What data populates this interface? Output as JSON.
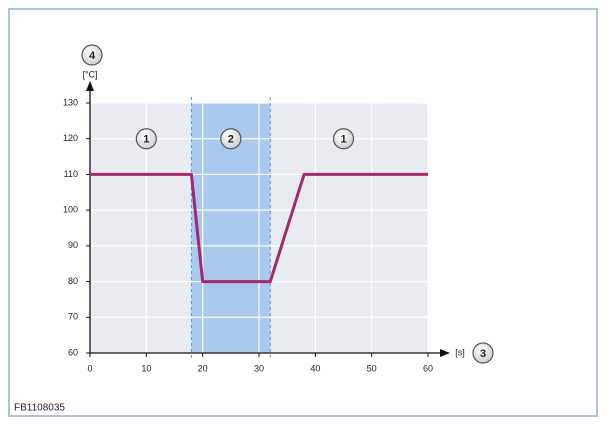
{
  "chart_data": {
    "type": "line",
    "x": [
      0,
      18,
      20,
      32,
      38,
      60
    ],
    "series": [
      {
        "values": [
          110,
          110,
          80,
          80,
          110,
          110
        ],
        "color": "#a32a6c"
      }
    ],
    "xlim": [
      0,
      60
    ],
    "ylim": [
      60,
      130
    ],
    "xticks": [
      0,
      10,
      20,
      30,
      40,
      50,
      60
    ],
    "yticks": [
      60,
      70,
      80,
      90,
      100,
      110,
      120,
      130
    ],
    "grid": true,
    "band": [
      18,
      32
    ],
    "band_color": "#a9c9ef",
    "y_label": "[°C]",
    "x_label": "[s]",
    "y_callout": "4",
    "x_callout": "3",
    "annotations": [
      {
        "label": "1",
        "x": 10,
        "y": 120
      },
      {
        "label": "2",
        "x": 25,
        "y": 120
      },
      {
        "label": "1",
        "x": 45,
        "y": 120
      }
    ],
    "caption": "FB1108035"
  }
}
